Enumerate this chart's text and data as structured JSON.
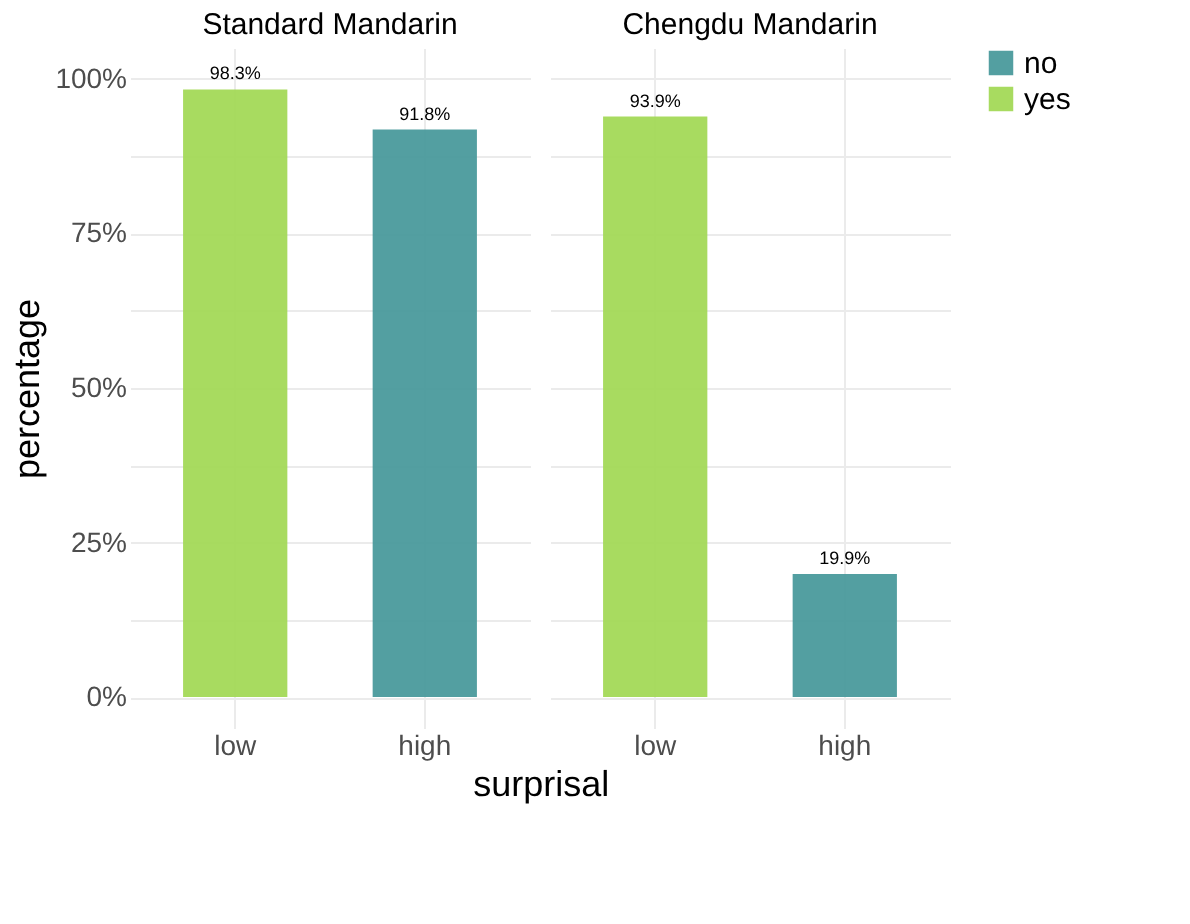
{
  "chart_data": [
    {
      "type": "bar",
      "title": "Standard Mandarin",
      "xlabel": "surprisal",
      "ylabel": "percentage",
      "categories": [
        "low",
        "high"
      ],
      "series": [
        {
          "name": "no",
          "color": "#4a9a9c",
          "values": [
            null,
            91.8
          ],
          "value_labels": [
            null,
            "91.8%"
          ]
        },
        {
          "name": "yes",
          "color": "#a3d957",
          "values": [
            98.3,
            null
          ],
          "value_labels": [
            "98.3%",
            null
          ]
        }
      ],
      "ylim": [
        -5,
        105
      ],
      "yticks": [
        {
          "value": 0,
          "label": "0%"
        },
        {
          "value": 12.5,
          "label": null
        },
        {
          "value": 25,
          "label": "25%"
        },
        {
          "value": 37.5,
          "label": null
        },
        {
          "value": 50,
          "label": "50%"
        },
        {
          "value": 62.5,
          "label": null
        },
        {
          "value": 75,
          "label": "75%"
        },
        {
          "value": 87.5,
          "label": null
        },
        {
          "value": 100,
          "label": "100%"
        }
      ],
      "grid": true,
      "legend": "right"
    },
    {
      "type": "bar",
      "title": "Chengdu Mandarin",
      "categories": [
        "low",
        "high"
      ],
      "series": [
        {
          "name": "no",
          "color": "#4a9a9c",
          "values": [
            null,
            19.9
          ],
          "value_labels": [
            null,
            "19.9%"
          ]
        },
        {
          "name": "yes",
          "color": "#a3d957",
          "values": [
            93.9,
            null
          ],
          "value_labels": [
            "93.9%",
            null
          ]
        }
      ],
      "ylim": [
        -5,
        105
      ],
      "yticks": [
        {
          "value": 0,
          "label": null
        },
        {
          "value": 12.5,
          "label": null
        },
        {
          "value": 25,
          "label": null
        },
        {
          "value": 37.5,
          "label": null
        },
        {
          "value": 50,
          "label": null
        },
        {
          "value": 62.5,
          "label": null
        },
        {
          "value": 75,
          "label": null
        },
        {
          "value": 87.5,
          "label": null
        },
        {
          "value": 100,
          "label": null
        }
      ],
      "grid": true,
      "legend": "right",
      "tick_labels": "x"
    }
  ]
}
